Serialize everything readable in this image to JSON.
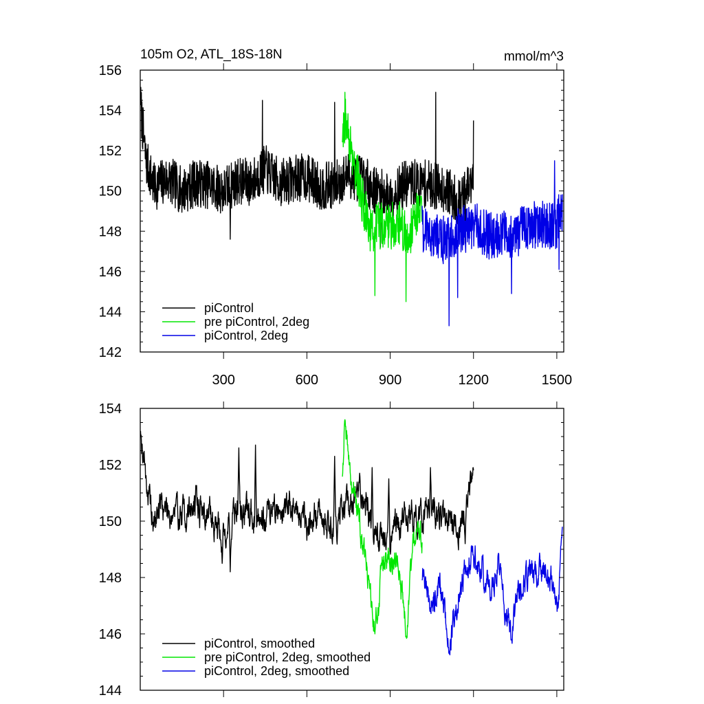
{
  "chart_data": [
    {
      "type": "line",
      "title": "105m O2, ATL_18S-18N",
      "units": "mmol/m^3",
      "xlim": [
        0,
        1525
      ],
      "ylim": [
        142,
        156
      ],
      "yticks": [
        142,
        144,
        146,
        148,
        150,
        152,
        154,
        156
      ],
      "xticks": [
        300,
        600,
        900,
        1200,
        1500
      ],
      "colors": {
        "piControl": "#000000",
        "pre": "#00e600",
        "twodeg": "#0000e6"
      },
      "series": [
        {
          "name": "piControl",
          "color": "#000000",
          "x_range": [
            1,
            1200
          ],
          "anchors": [
            [
              1,
              154.3
            ],
            [
              20,
              151.5
            ],
            [
              50,
              150.2
            ],
            [
              100,
              150.6
            ],
            [
              150,
              150.0
            ],
            [
              200,
              150.4
            ],
            [
              250,
              150.3
            ],
            [
              300,
              150.0
            ],
            [
              350,
              150.5
            ],
            [
              400,
              150.4
            ],
            [
              450,
              151.1
            ],
            [
              500,
              150.4
            ],
            [
              550,
              150.6
            ],
            [
              600,
              150.7
            ],
            [
              650,
              150.2
            ],
            [
              700,
              150.3
            ],
            [
              750,
              150.8
            ],
            [
              800,
              150.6
            ],
            [
              850,
              150.0
            ],
            [
              900,
              149.7
            ],
            [
              950,
              150.3
            ],
            [
              1000,
              150.4
            ],
            [
              1050,
              150.3
            ],
            [
              1100,
              150.1
            ],
            [
              1150,
              149.4
            ],
            [
              1200,
              150.5
            ]
          ],
          "noise": 1.2,
          "extremes": [
            [
              1,
              154.3
            ],
            [
              324,
              147.6
            ],
            [
              440,
              154.5
            ],
            [
              700,
              154.4
            ],
            [
              865,
              147.2
            ],
            [
              1064,
              154.9
            ],
            [
              1170,
              147.4
            ],
            [
              1200,
              153.5
            ]
          ]
        },
        {
          "name": "pre piControl, 2deg",
          "color": "#00e600",
          "x_range": [
            728,
            1015
          ],
          "anchors": [
            [
              728,
              152.5
            ],
            [
              740,
              153.5
            ],
            [
              770,
              151.5
            ],
            [
              800,
              149.5
            ],
            [
              830,
              148.0
            ],
            [
              860,
              148.3
            ],
            [
              900,
              148.3
            ],
            [
              940,
              148.4
            ],
            [
              960,
              147.5
            ],
            [
              990,
              148.8
            ],
            [
              1015,
              149.3
            ]
          ],
          "noise": 1.2,
          "extremes": [
            [
              737,
              154.9
            ],
            [
              845,
              144.8
            ],
            [
              957,
              144.5
            ]
          ]
        },
        {
          "name": "piControl, 2deg",
          "color": "#0000e6",
          "x_range": [
            1015,
            1520
          ],
          "anchors": [
            [
              1015,
              148.2
            ],
            [
              1060,
              147.8
            ],
            [
              1100,
              147.5
            ],
            [
              1150,
              148.0
            ],
            [
              1200,
              148.3
            ],
            [
              1250,
              147.8
            ],
            [
              1300,
              147.9
            ],
            [
              1350,
              147.8
            ],
            [
              1400,
              148.3
            ],
            [
              1450,
              148.3
            ],
            [
              1500,
              148.3
            ],
            [
              1520,
              149.2
            ]
          ],
          "noise": 1.2,
          "extremes": [
            [
              1112,
              143.3
            ],
            [
              1143,
              144.7
            ],
            [
              1337,
              144.9
            ],
            [
              1492,
              151.5
            ],
            [
              1508,
              146.1
            ]
          ]
        }
      ],
      "legend": [
        "piControl",
        "pre piControl, 2deg",
        "piControl, 2deg"
      ],
      "legend_position": "lower-left"
    },
    {
      "type": "line",
      "xlim": [
        0,
        1525
      ],
      "ylim": [
        144,
        154
      ],
      "yticks": [
        144,
        146,
        148,
        150,
        152,
        154
      ],
      "series": [
        {
          "name": "piControl, smoothed",
          "color": "#000000",
          "x_range": [
            1,
            1200
          ],
          "anchors": [
            [
              1,
              153.2
            ],
            [
              15,
              152.2
            ],
            [
              30,
              150.8
            ],
            [
              50,
              149.8
            ],
            [
              70,
              150.6
            ],
            [
              100,
              150.4
            ],
            [
              150,
              150.2
            ],
            [
              200,
              150.6
            ],
            [
              250,
              150.2
            ],
            [
              300,
              149.6
            ],
            [
              350,
              150.4
            ],
            [
              400,
              150.2
            ],
            [
              450,
              150.4
            ],
            [
              500,
              150.4
            ],
            [
              550,
              150.5
            ],
            [
              600,
              150.0
            ],
            [
              650,
              150.2
            ],
            [
              700,
              149.8
            ],
            [
              750,
              150.5
            ],
            [
              800,
              151.0
            ],
            [
              850,
              149.6
            ],
            [
              900,
              149.3
            ],
            [
              950,
              150.2
            ],
            [
              1000,
              150.0
            ],
            [
              1050,
              150.2
            ],
            [
              1100,
              150.0
            ],
            [
              1150,
              149.6
            ],
            [
              1200,
              151.8
            ]
          ],
          "noise": 0.75,
          "extremes": [
            [
              1,
              153.2
            ],
            [
              295,
              148.5
            ],
            [
              324,
              148.2
            ],
            [
              355,
              152.6
            ],
            [
              415,
              152.7
            ],
            [
              700,
              152.3
            ],
            [
              790,
              151.7
            ],
            [
              835,
              151.9
            ],
            [
              895,
              151.5
            ],
            [
              1045,
              151.9
            ],
            [
              1140,
              149.5
            ],
            [
              1170,
              149.2
            ],
            [
              1200,
              151.8
            ]
          ]
        },
        {
          "name": "pre piControl, 2deg, smoothed",
          "color": "#00e600",
          "x_range": [
            728,
            1015
          ],
          "anchors": [
            [
              728,
              151.5
            ],
            [
              737,
              153.6
            ],
            [
              750,
              152.3
            ],
            [
              770,
              151.2
            ],
            [
              790,
              150.0
            ],
            [
              805,
              148.8
            ],
            [
              820,
              147.8
            ],
            [
              845,
              146.0
            ],
            [
              870,
              148.5
            ],
            [
              900,
              148.3
            ],
            [
              930,
              148.2
            ],
            [
              957,
              145.9
            ],
            [
              975,
              148.0
            ],
            [
              995,
              150.0
            ],
            [
              1015,
              149.0
            ]
          ],
          "noise": 0.7,
          "extremes": [
            [
              737,
              153.6
            ],
            [
              845,
              146.0
            ],
            [
              957,
              145.9
            ],
            [
              1000,
              150.0
            ]
          ]
        },
        {
          "name": "piControl, 2deg, smoothed",
          "color": "#0000e6",
          "x_range": [
            1015,
            1520
          ],
          "anchors": [
            [
              1015,
              148.2
            ],
            [
              1050,
              147.0
            ],
            [
              1080,
              148.0
            ],
            [
              1112,
              145.3
            ],
            [
              1140,
              147.2
            ],
            [
              1170,
              148.4
            ],
            [
              1200,
              148.8
            ],
            [
              1230,
              148.5
            ],
            [
              1260,
              147.5
            ],
            [
              1290,
              148.5
            ],
            [
              1337,
              145.8
            ],
            [
              1360,
              147.8
            ],
            [
              1400,
              148.0
            ],
            [
              1450,
              148.2
            ],
            [
              1490,
              147.5
            ],
            [
              1505,
              147.0
            ],
            [
              1520,
              149.5
            ]
          ],
          "noise": 0.7,
          "extremes": [
            [
              1112,
              145.3
            ],
            [
              1337,
              145.8
            ],
            [
              1520,
              149.8
            ]
          ]
        }
      ],
      "legend": [
        "piControl, smoothed",
        "pre piControl, 2deg, smoothed",
        "piControl, 2deg, smoothed"
      ],
      "legend_position": "lower-left"
    }
  ]
}
